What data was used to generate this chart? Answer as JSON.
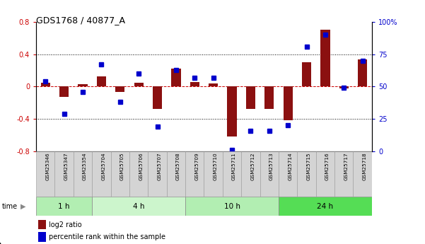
{
  "title": "GDS1768 / 40877_A",
  "samples": [
    "GSM25346",
    "GSM25347",
    "GSM25354",
    "GSM25704",
    "GSM25705",
    "GSM25706",
    "GSM25707",
    "GSM25708",
    "GSM25709",
    "GSM25710",
    "GSM25711",
    "GSM25712",
    "GSM25713",
    "GSM25714",
    "GSM25715",
    "GSM25716",
    "GSM25717",
    "GSM25718"
  ],
  "log2_ratio": [
    0.05,
    -0.13,
    0.03,
    0.13,
    -0.07,
    0.05,
    -0.28,
    0.22,
    0.06,
    0.04,
    -0.62,
    -0.28,
    -0.28,
    -0.42,
    0.3,
    0.7,
    -0.02,
    0.34
  ],
  "percentile": [
    54,
    29,
    46,
    67,
    38,
    60,
    19,
    63,
    57,
    57,
    1,
    16,
    16,
    20,
    81,
    90,
    49,
    70
  ],
  "time_groups": [
    {
      "label": "1 h",
      "start": 0,
      "end": 3,
      "color": "#b2eeb2"
    },
    {
      "label": "4 h",
      "start": 3,
      "end": 8,
      "color": "#ccf5cc"
    },
    {
      "label": "10 h",
      "start": 8,
      "end": 13,
      "color": "#b2eeb2"
    },
    {
      "label": "24 h",
      "start": 13,
      "end": 18,
      "color": "#55dd55"
    }
  ],
  "ylim_left": [
    -0.8,
    0.8
  ],
  "ylim_right": [
    0,
    100
  ],
  "yticks_left": [
    -0.8,
    -0.4,
    0.0,
    0.4,
    0.8
  ],
  "ytick_labels_left": [
    "-0.8",
    "-0.4",
    "0",
    "0.4",
    "0.8"
  ],
  "yticks_right": [
    0,
    25,
    50,
    75,
    100
  ],
  "ytick_labels_right": [
    "0",
    "25",
    "50",
    "75",
    "100%"
  ],
  "bar_color": "#8B1010",
  "dot_color": "#0000CC",
  "zero_line_color": "#CC0000",
  "dot_line_color": "#CC0000",
  "grid_color": "#000000",
  "col_bg": "#d4d4d4",
  "col_border": "#999999"
}
